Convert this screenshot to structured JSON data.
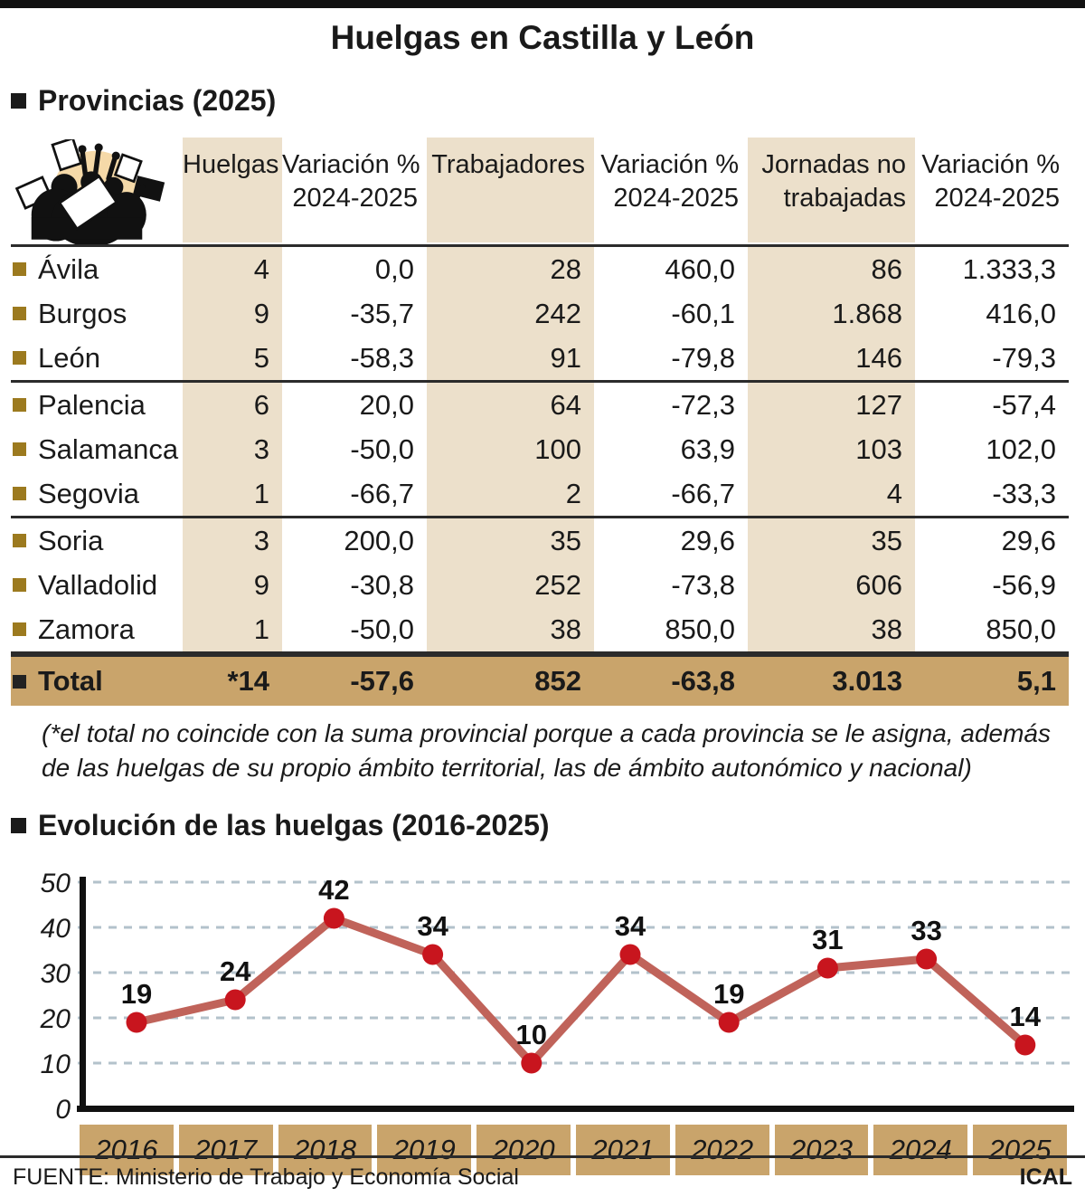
{
  "title": "Huelgas en Castilla y León",
  "provinces_section": {
    "heading": "Provincias (2025)",
    "icon": "protest-crowd-icon",
    "columns": [
      {
        "line1": "Huelgas",
        "line2": "",
        "shaded": true
      },
      {
        "line1": "Variación %",
        "line2": "2024-2025",
        "shaded": false
      },
      {
        "line1": "Trabajadores",
        "line2": "",
        "shaded": true
      },
      {
        "line1": "Variación %",
        "line2": "2024-2025",
        "shaded": false
      },
      {
        "line1": "Jornadas no",
        "line2": "trabajadas",
        "shaded": true
      },
      {
        "line1": "Variación %",
        "line2": "2024-2025",
        "shaded": false
      }
    ],
    "rows": [
      {
        "name": "Ávila",
        "values": [
          "4",
          "0,0",
          "28",
          "460,0",
          "86",
          "1.333,3"
        ],
        "divider_after": false
      },
      {
        "name": "Burgos",
        "values": [
          "9",
          "-35,7",
          "242",
          "-60,1",
          "1.868",
          "416,0"
        ],
        "divider_after": false
      },
      {
        "name": "León",
        "values": [
          "5",
          "-58,3",
          "91",
          "-79,8",
          "146",
          "-79,3"
        ],
        "divider_after": true
      },
      {
        "name": "Palencia",
        "values": [
          "6",
          "20,0",
          "64",
          "-72,3",
          "127",
          "-57,4"
        ],
        "divider_after": false
      },
      {
        "name": "Salamanca",
        "values": [
          "3",
          "-50,0",
          "100",
          "63,9",
          "103",
          "102,0"
        ],
        "divider_after": false
      },
      {
        "name": "Segovia",
        "values": [
          "1",
          "-66,7",
          "2",
          "-66,7",
          "4",
          "-33,3"
        ],
        "divider_after": true
      },
      {
        "name": "Soria",
        "values": [
          "3",
          "200,0",
          "35",
          "29,6",
          "35",
          "29,6"
        ],
        "divider_after": false
      },
      {
        "name": "Valladolid",
        "values": [
          "9",
          "-30,8",
          "252",
          "-73,8",
          "606",
          "-56,9"
        ],
        "divider_after": false
      },
      {
        "name": "Zamora",
        "values": [
          "1",
          "-50,0",
          "38",
          "850,0",
          "38",
          "850,0"
        ],
        "divider_after": true
      }
    ],
    "total": {
      "name": "Total",
      "values": [
        "*14",
        "-57,6",
        "852",
        "-63,8",
        "3.013",
        "5,1"
      ]
    },
    "footnote": "(*el total no coincide con la suma provincial porque a cada provincia se le asigna, además de las huelgas de su propio ámbito territorial, las de ámbito autonómico y nacional)"
  },
  "evolution_section": {
    "heading": "Evolución de las huelgas (2016-2025)"
  },
  "chart_data": {
    "type": "line",
    "title": "Evolución de las huelgas (2016-2025)",
    "categories": [
      "2016",
      "2017",
      "2018",
      "2019",
      "2020",
      "2021",
      "2022",
      "2023",
      "2024",
      "2025"
    ],
    "values": [
      19,
      24,
      42,
      34,
      10,
      34,
      19,
      31,
      33,
      14
    ],
    "xlabel": "",
    "ylabel": "",
    "ylim": [
      0,
      50
    ],
    "yticks": [
      0,
      10,
      20,
      30,
      40,
      50
    ],
    "grid": true,
    "legend": "none",
    "colors": {
      "line": "#c0635a",
      "point": "#c8151e",
      "gridline": "#b3c2cb",
      "year_box": "#c9a46b"
    }
  },
  "colors": {
    "shade": "#ece0cb",
    "total_row": "#c9a46b",
    "bullet_gold": "#9c7a1f",
    "text": "#1a1a1a"
  },
  "footer": {
    "source": "FUENTE: Ministerio de Trabajo y Economía Social",
    "credit": "ICAL"
  }
}
